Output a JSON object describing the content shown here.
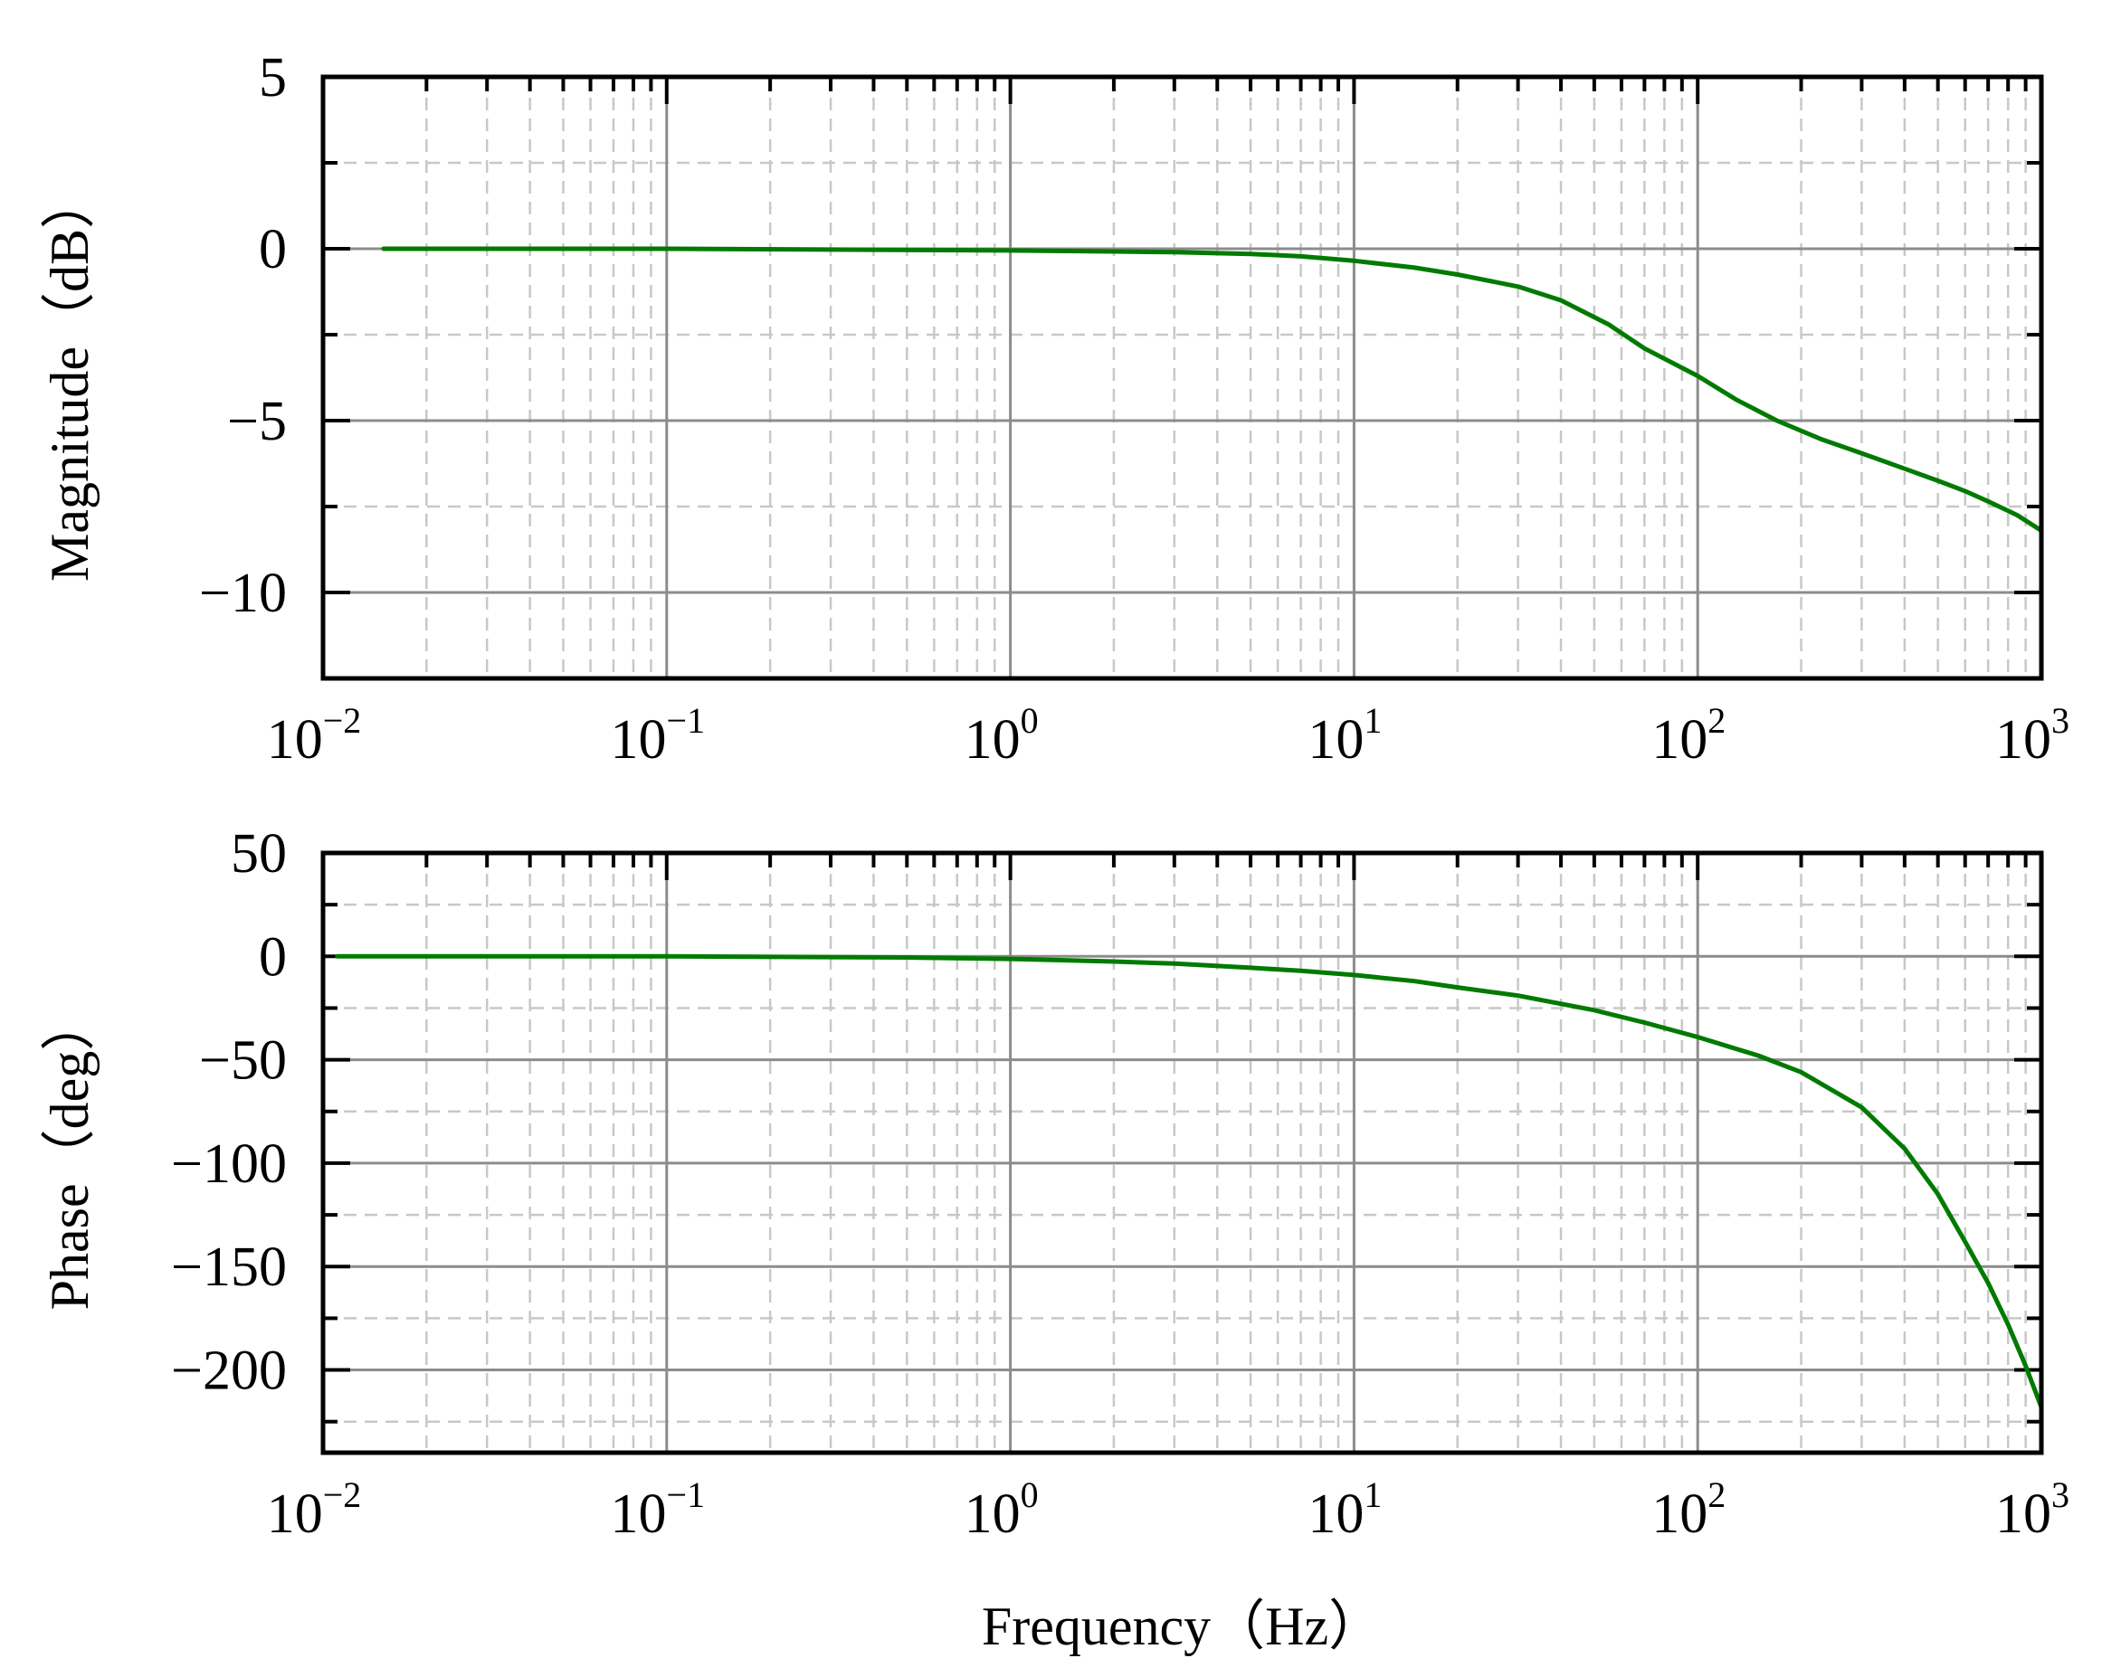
{
  "chart_data": [
    {
      "type": "line",
      "title": "",
      "xlabel": "",
      "ylabel": "Magnitude（dB）",
      "xscale": "log",
      "xlim": [
        0.01,
        1000
      ],
      "ylim": [
        -12.5,
        5
      ],
      "y_ticks": [
        5,
        0,
        -5,
        -10
      ],
      "y_tick_labels": [
        "5",
        "0",
        "−5",
        "−10"
      ],
      "y_minor_ticks": [
        2.5,
        -2.5,
        -7.5
      ],
      "x_ticks": [
        {
          "base": "10",
          "exp": "−2",
          "value": 0.01
        },
        {
          "base": "10",
          "exp": "−1",
          "value": 0.1
        },
        {
          "base": "10",
          "exp": "0",
          "value": 1
        },
        {
          "base": "10",
          "exp": "1",
          "value": 10
        },
        {
          "base": "10",
          "exp": "2",
          "value": 100
        },
        {
          "base": "10",
          "exp": "3",
          "value": 1000
        }
      ],
      "grid": true,
      "line_color": "#007a00",
      "series": [
        {
          "x": [
            0.015,
            0.1,
            1,
            2,
            3,
            5,
            7,
            10,
            15,
            20,
            30,
            40,
            55,
            70,
            100,
            130,
            170,
            230,
            300,
            400,
            500,
            600,
            700,
            850,
            1000
          ],
          "y": [
            0,
            0,
            -0.05,
            -0.08,
            -0.1,
            -0.15,
            -0.22,
            -0.35,
            -0.55,
            -0.75,
            -1.1,
            -1.5,
            -2.2,
            -2.9,
            -3.7,
            -4.4,
            -5.0,
            -5.55,
            -5.95,
            -6.4,
            -6.75,
            -7.05,
            -7.35,
            -7.75,
            -8.2
          ]
        }
      ]
    },
    {
      "type": "line",
      "title": "",
      "xlabel": "Frequency（Hz）",
      "ylabel": "Phase（deg）",
      "xscale": "log",
      "xlim": [
        0.01,
        1000
      ],
      "ylim": [
        -240,
        50
      ],
      "y_ticks": [
        50,
        0,
        -50,
        -100,
        -150,
        -200
      ],
      "y_tick_labels": [
        "50",
        "0",
        "−50",
        "−100",
        "−150",
        "−200"
      ],
      "y_minor_ticks": [
        25,
        -25,
        -75,
        -125,
        -175,
        -225
      ],
      "x_ticks": [
        {
          "base": "10",
          "exp": "−2",
          "value": 0.01
        },
        {
          "base": "10",
          "exp": "−1",
          "value": 0.1
        },
        {
          "base": "10",
          "exp": "0",
          "value": 1
        },
        {
          "base": "10",
          "exp": "1",
          "value": 10
        },
        {
          "base": "10",
          "exp": "2",
          "value": 100
        },
        {
          "base": "10",
          "exp": "3",
          "value": 1000
        }
      ],
      "grid": true,
      "line_color": "#007a00",
      "series": [
        {
          "x": [
            0.011,
            0.1,
            0.5,
            1,
            2,
            3,
            5,
            7,
            10,
            15,
            20,
            30,
            50,
            70,
            100,
            150,
            200,
            300,
            400,
            500,
            600,
            700,
            800,
            900,
            1000
          ],
          "y": [
            0,
            0,
            -0.5,
            -1.2,
            -2.5,
            -3.5,
            -5.5,
            -7,
            -9,
            -12,
            -15,
            -19,
            -26,
            -32,
            -39,
            -48,
            -56,
            -73,
            -93,
            -115,
            -138,
            -158,
            -178,
            -198,
            -218
          ]
        }
      ]
    }
  ]
}
